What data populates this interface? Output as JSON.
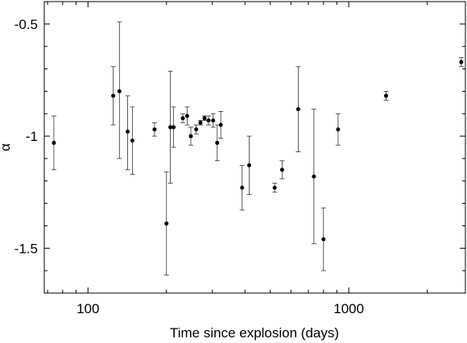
{
  "chart_data": {
    "type": "scatter",
    "xlabel": "Time since explosion (days)",
    "ylabel": "α",
    "xscale": "log",
    "xlim": [
      68,
      2800
    ],
    "ylim": [
      -1.7,
      -0.4
    ],
    "grid": false,
    "legend": "none",
    "x_ticks": [
      {
        "value": 100,
        "label": "100"
      },
      {
        "value": 1000,
        "label": "1000"
      }
    ],
    "y_ticks": [
      {
        "value": -0.5,
        "label": "-0.5"
      },
      {
        "value": -1.0,
        "label": "-1"
      },
      {
        "value": -1.5,
        "label": "-1.5"
      }
    ],
    "series": [
      {
        "color": "#000000",
        "points": [
          {
            "x": 74,
            "y": -1.03,
            "lo": -1.15,
            "hi": -0.91
          },
          {
            "x": 125,
            "y": -0.82,
            "lo": -0.95,
            "hi": -0.69
          },
          {
            "x": 132,
            "y": -0.8,
            "lo": -1.1,
            "hi": -0.49
          },
          {
            "x": 142,
            "y": -0.98,
            "lo": -1.15,
            "hi": -0.82
          },
          {
            "x": 148,
            "y": -1.02,
            "lo": -1.17,
            "hi": -0.87
          },
          {
            "x": 180,
            "y": -0.97,
            "lo": -1.0,
            "hi": -0.94
          },
          {
            "x": 200,
            "y": -1.39,
            "lo": -1.62,
            "hi": -1.16
          },
          {
            "x": 207,
            "y": -0.96,
            "lo": -1.21,
            "hi": -0.71
          },
          {
            "x": 213,
            "y": -0.96,
            "lo": -1.05,
            "hi": -0.87
          },
          {
            "x": 231,
            "y": -0.92,
            "lo": -0.94,
            "hi": -0.9
          },
          {
            "x": 240,
            "y": -0.91,
            "lo": -0.95,
            "hi": -0.87
          },
          {
            "x": 248,
            "y": -1.0,
            "lo": -1.04,
            "hi": -0.96
          },
          {
            "x": 260,
            "y": -0.97,
            "lo": -0.99,
            "hi": -0.95
          },
          {
            "x": 270,
            "y": -0.94,
            "lo": -0.95,
            "hi": -0.93
          },
          {
            "x": 280,
            "y": -0.92,
            "lo": -0.93,
            "hi": -0.91
          },
          {
            "x": 290,
            "y": -0.93,
            "lo": -0.95,
            "hi": -0.91
          },
          {
            "x": 302,
            "y": -0.93,
            "lo": -0.96,
            "hi": -0.9
          },
          {
            "x": 313,
            "y": -1.03,
            "lo": -1.11,
            "hi": -0.95
          },
          {
            "x": 323,
            "y": -0.95,
            "lo": -1.01,
            "hi": -0.89
          },
          {
            "x": 390,
            "y": -1.23,
            "lo": -1.33,
            "hi": -1.13
          },
          {
            "x": 415,
            "y": -1.13,
            "lo": -1.26,
            "hi": -1.0
          },
          {
            "x": 520,
            "y": -1.23,
            "lo": -1.25,
            "hi": -1.21
          },
          {
            "x": 555,
            "y": -1.15,
            "lo": -1.19,
            "hi": -1.11
          },
          {
            "x": 640,
            "y": -0.88,
            "lo": -1.07,
            "hi": -0.69
          },
          {
            "x": 735,
            "y": -1.18,
            "lo": -1.48,
            "hi": -0.88
          },
          {
            "x": 800,
            "y": -1.46,
            "lo": -1.6,
            "hi": -1.32
          },
          {
            "x": 910,
            "y": -0.97,
            "lo": -1.04,
            "hi": -0.9
          },
          {
            "x": 1390,
            "y": -0.82,
            "lo": -0.84,
            "hi": -0.8
          },
          {
            "x": 2700,
            "y": -0.67,
            "lo": -0.69,
            "hi": -0.65
          }
        ]
      }
    ]
  }
}
